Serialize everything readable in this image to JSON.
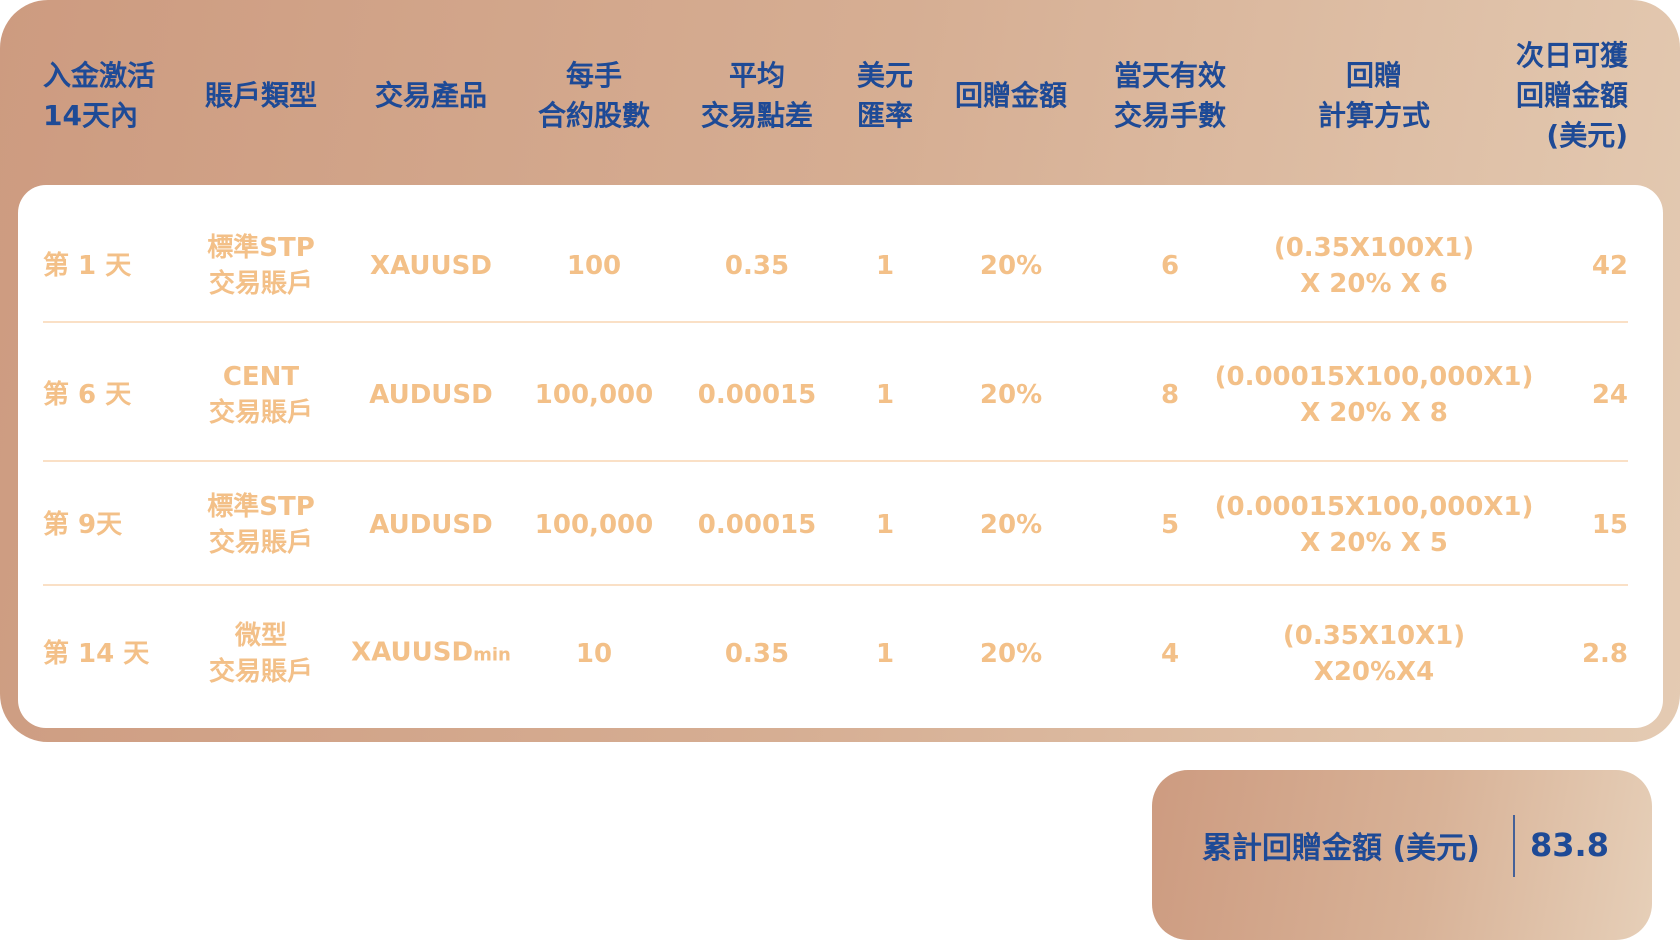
{
  "colors": {
    "header_text": "#1e4a96",
    "body_text": "#f3c088",
    "divider": "#fae0c6",
    "panel_gradient": [
      "#cd9b80",
      "#e4cbb3"
    ]
  },
  "table": {
    "headers": [
      "入金激活\n14天內",
      "賬戶類型",
      "交易產品",
      "每手\n合約股數",
      "平均\n交易點差",
      "美元\n匯率",
      "回贈金額",
      "當天有效\n交易手數",
      "回贈\n計算方式",
      "次日可獲\n回贈金額\n(美元)"
    ],
    "rows": [
      [
        "第 1 天",
        "標準STP\n交易賬戶",
        "XAUUSD",
        "100",
        "0.35",
        "1",
        "20%",
        "6",
        "(0.35X100X1)\nX 20% X 6",
        "42"
      ],
      [
        "第 6 天",
        "CENT\n交易賬戶",
        "AUDUSD",
        "100,000",
        "0.00015",
        "1",
        "20%",
        "8",
        "(0.00015X100,000X1)\nX 20% X 8",
        "24"
      ],
      [
        "第 9天",
        "標準STP\n交易賬戶",
        "AUDUSD",
        "100,000",
        "0.00015",
        "1",
        "20%",
        "5",
        "(0.00015X100,000X1)\nX 20% X 5",
        "15"
      ],
      [
        "第 14 天",
        "微型\n交易賬戶",
        "XAUUSDmin",
        "10",
        "0.35",
        "1",
        "20%",
        "4",
        "(0.35X10X1)\nX20%X4",
        "2.8"
      ]
    ]
  },
  "summary": {
    "label": "累計回贈金額 (美元)",
    "value": "83.8"
  }
}
